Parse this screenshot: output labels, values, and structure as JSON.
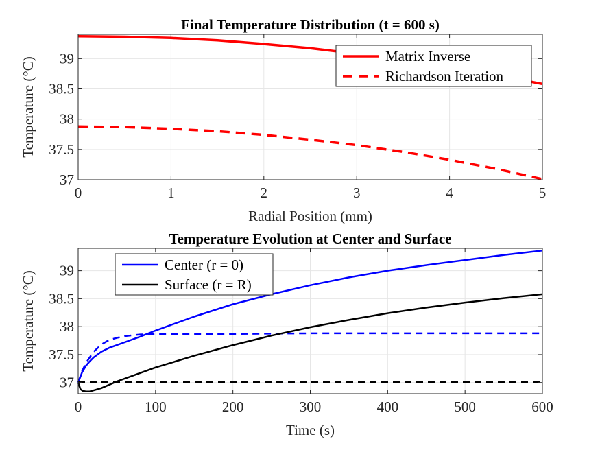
{
  "chart_data": [
    {
      "type": "line",
      "title": "Final Temperature Distribution (t = 600 s)",
      "xlabel": "Radial Position (mm)",
      "ylabel": "Temperature (°C)",
      "xlim": [
        0,
        5
      ],
      "ylim": [
        37,
        39.4
      ],
      "xticks": [
        0,
        1,
        2,
        3,
        4,
        5
      ],
      "yticks": [
        37,
        37.5,
        38,
        38.5,
        39
      ],
      "xtick_labels": [
        "0",
        "1",
        "2",
        "3",
        "4",
        "5"
      ],
      "ytick_labels": [
        "37",
        "37.5",
        "38",
        "38.5",
        "39"
      ],
      "grid": true,
      "legend_position": "top-right",
      "series": [
        {
          "name": "Matrix Inverse",
          "color": "#ff0000",
          "style": "solid",
          "x": [
            0,
            0.5,
            1,
            1.5,
            2,
            2.5,
            3,
            3.5,
            4,
            4.5,
            5
          ],
          "y": [
            39.37,
            39.36,
            39.34,
            39.3,
            39.24,
            39.17,
            39.08,
            38.97,
            38.86,
            38.73,
            38.58
          ]
        },
        {
          "name": "Richardson Iteration",
          "color": "#ff0000",
          "style": "dashed",
          "x": [
            0,
            0.5,
            1,
            1.5,
            2,
            2.5,
            3,
            3.5,
            4,
            4.5,
            5
          ],
          "y": [
            37.88,
            37.87,
            37.84,
            37.8,
            37.74,
            37.66,
            37.57,
            37.46,
            37.33,
            37.18,
            37.01
          ]
        }
      ]
    },
    {
      "type": "line",
      "title": "Temperature Evolution at Center and Surface",
      "xlabel": "Time (s)",
      "ylabel": "Temperature (°C)",
      "xlim": [
        0,
        600
      ],
      "ylim": [
        36.8,
        39.4
      ],
      "xticks": [
        0,
        100,
        200,
        300,
        400,
        500,
        600
      ],
      "yticks": [
        37,
        37.5,
        38,
        38.5,
        39
      ],
      "xtick_labels": [
        "0",
        "100",
        "200",
        "300",
        "400",
        "500",
        "600"
      ],
      "ytick_labels": [
        "37",
        "37.5",
        "38",
        "38.5",
        "39"
      ],
      "grid": true,
      "legend_position": "top-left",
      "series": [
        {
          "name": "Center (r = 0)",
          "color": "#0000ff",
          "style": "solid",
          "x": [
            0,
            5,
            10,
            15,
            20,
            30,
            40,
            50,
            60,
            80,
            100,
            150,
            200,
            250,
            300,
            350,
            400,
            450,
            500,
            550,
            600
          ],
          "y": [
            37.0,
            37.18,
            37.3,
            37.38,
            37.45,
            37.55,
            37.62,
            37.67,
            37.72,
            37.82,
            37.93,
            38.18,
            38.4,
            38.58,
            38.74,
            38.88,
            39.0,
            39.1,
            39.19,
            39.28,
            39.36
          ]
        },
        {
          "color": "#0000ff",
          "style": "dashed",
          "x": [
            0,
            5,
            10,
            15,
            20,
            30,
            40,
            50,
            60,
            80,
            100,
            150,
            200,
            300,
            400,
            500,
            600
          ],
          "y": [
            37.0,
            37.2,
            37.35,
            37.45,
            37.55,
            37.68,
            37.76,
            37.8,
            37.83,
            37.86,
            37.87,
            37.87,
            37.87,
            37.88,
            37.88,
            37.88,
            37.88
          ]
        },
        {
          "name": "Surface (r = R)",
          "color": "#000000",
          "style": "solid",
          "x": [
            0,
            3,
            6,
            10,
            15,
            20,
            30,
            40,
            50,
            60,
            80,
            100,
            150,
            200,
            250,
            300,
            350,
            400,
            450,
            500,
            550,
            600
          ],
          "y": [
            37.0,
            36.88,
            36.85,
            36.84,
            36.84,
            36.86,
            36.9,
            36.96,
            37.02,
            37.07,
            37.17,
            37.27,
            37.48,
            37.67,
            37.84,
            37.99,
            38.12,
            38.24,
            38.34,
            38.43,
            38.51,
            38.58
          ]
        },
        {
          "color": "#000000",
          "style": "dashed",
          "x": [
            0,
            100,
            200,
            300,
            400,
            500,
            600
          ],
          "y": [
            37.01,
            37.01,
            37.01,
            37.01,
            37.01,
            37.01,
            37.01
          ]
        }
      ]
    }
  ]
}
